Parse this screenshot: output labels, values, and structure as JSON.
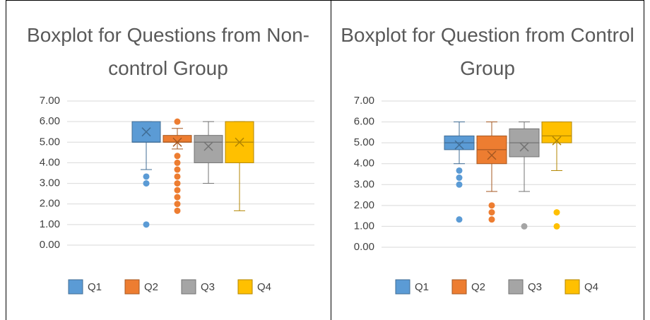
{
  "chart_data": [
    {
      "type": "box",
      "title": "Boxplot for Questions from Non-control Group",
      "ylim": [
        0,
        7
      ],
      "yticks": [
        {
          "value": 0,
          "label": "0.00"
        },
        {
          "value": 1,
          "label": "1.00"
        },
        {
          "value": 2,
          "label": "2.00"
        },
        {
          "value": 3,
          "label": "3.00"
        },
        {
          "value": 4,
          "label": "4.00"
        },
        {
          "value": 5,
          "label": "5.00"
        },
        {
          "value": 6,
          "label": "6.00"
        },
        {
          "value": 7,
          "label": "7.00"
        }
      ],
      "grid": true,
      "legend": "bottom",
      "series": [
        {
          "name": "Q1",
          "color": "#5b9bd5",
          "min": 3.67,
          "q1": 5.0,
          "median": 5.0,
          "q3": 6.0,
          "max": 6.0,
          "mean": 5.5,
          "outliers": [
            3.33,
            3.0,
            1.0
          ]
        },
        {
          "name": "Q2",
          "color": "#ed7d31",
          "min": 4.67,
          "q1": 5.0,
          "median": 5.0,
          "q3": 5.33,
          "max": 5.67,
          "mean": 5.0,
          "outliers": [
            6.0,
            4.33,
            4.0,
            3.67,
            3.33,
            3.0,
            2.67,
            2.33,
            2.0,
            1.67
          ]
        },
        {
          "name": "Q3",
          "color": "#a5a5a5",
          "min": 3.0,
          "q1": 4.0,
          "median": 5.0,
          "q3": 5.33,
          "max": 6.0,
          "mean": 4.8,
          "outliers": []
        },
        {
          "name": "Q4",
          "color": "#ffc000",
          "min": 1.67,
          "q1": 4.0,
          "median": 5.0,
          "q3": 6.0,
          "max": 6.0,
          "mean": 5.0,
          "outliers": []
        }
      ]
    },
    {
      "type": "box",
      "title": "Boxplot for Question from Control Group",
      "ylim": [
        0,
        7
      ],
      "yticks": [
        {
          "value": 0,
          "label": "0.00"
        },
        {
          "value": 1,
          "label": "1.00"
        },
        {
          "value": 2,
          "label": "2.00"
        },
        {
          "value": 3,
          "label": "3.00"
        },
        {
          "value": 4,
          "label": "4.00"
        },
        {
          "value": 5,
          "label": "5.00"
        },
        {
          "value": 6,
          "label": "6.00"
        },
        {
          "value": 7,
          "label": "7.00"
        }
      ],
      "grid": true,
      "legend": "bottom",
      "series": [
        {
          "name": "Q1",
          "color": "#5b9bd5",
          "min": 4.0,
          "q1": 4.67,
          "median": 5.0,
          "q3": 5.33,
          "max": 6.0,
          "mean": 4.9,
          "outliers": [
            3.67,
            3.33,
            3.0,
            1.33
          ]
        },
        {
          "name": "Q2",
          "color": "#ed7d31",
          "min": 2.67,
          "q1": 4.0,
          "median": 4.67,
          "q3": 5.33,
          "max": 6.0,
          "mean": 4.4,
          "outliers": [
            2.0,
            1.67,
            1.33
          ]
        },
        {
          "name": "Q3",
          "color": "#a5a5a5",
          "min": 2.67,
          "q1": 4.33,
          "median": 5.0,
          "q3": 5.67,
          "max": 6.0,
          "mean": 4.8,
          "outliers": [
            1.0
          ]
        },
        {
          "name": "Q4",
          "color": "#ffc000",
          "min": 3.67,
          "q1": 5.0,
          "median": 5.33,
          "q3": 6.0,
          "max": 6.0,
          "mean": 5.1,
          "outliers": [
            1.67,
            1.0
          ]
        }
      ]
    }
  ]
}
